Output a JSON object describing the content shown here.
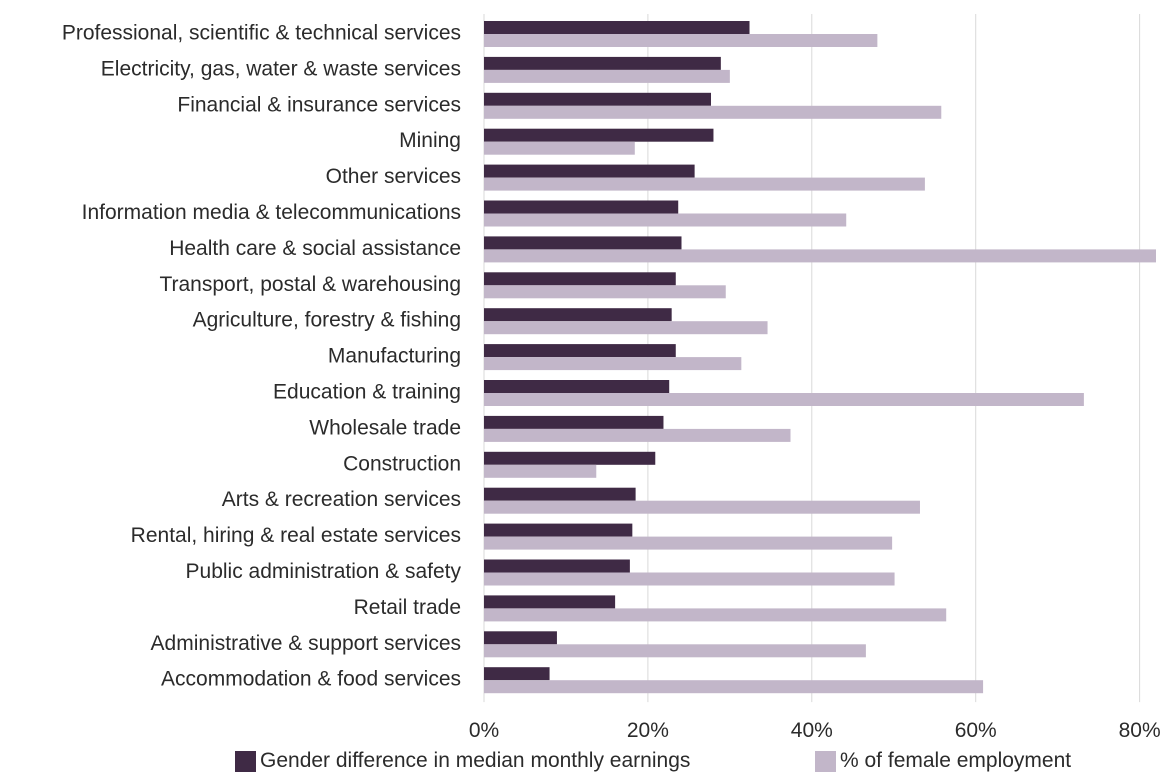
{
  "chart_data": {
    "type": "bar",
    "orientation": "horizontal",
    "categories": [
      "Professional, scientific & technical services",
      "Electricity, gas, water & waste services",
      "Financial & insurance services",
      "Mining",
      "Other services",
      "Information media & telecommunications",
      "Health care & social assistance",
      "Transport, postal & warehousing",
      "Agriculture, forestry & fishing",
      "Manufacturing",
      "Education & training",
      "Wholesale trade",
      "Construction",
      "Arts & recreation services",
      "Rental, hiring & real estate services",
      "Public administration & safety",
      "Retail trade",
      "Administrative & support services",
      "Accommodation & food services"
    ],
    "series": [
      {
        "name": "Gender difference in median monthly earnings",
        "color": "#3f2a45",
        "values": [
          32.4,
          28.9,
          27.7,
          28.0,
          25.7,
          23.7,
          24.1,
          23.4,
          22.9,
          23.4,
          22.6,
          21.9,
          20.9,
          18.5,
          18.1,
          17.8,
          16.0,
          8.9,
          8.0
        ]
      },
      {
        "name": "% of female employment",
        "color": "#c2b6c9",
        "values": [
          48.0,
          30.0,
          55.8,
          18.4,
          53.8,
          44.2,
          82.0,
          29.5,
          34.6,
          31.4,
          73.2,
          37.4,
          13.7,
          53.2,
          49.8,
          50.1,
          56.4,
          46.6,
          60.9
        ]
      }
    ],
    "xlim": [
      0,
      82
    ],
    "xticks": [
      "0%",
      "20%",
      "40%",
      "60%",
      "80%"
    ],
    "xtick_values": [
      0,
      20,
      40,
      60,
      80
    ],
    "grid": "vertical",
    "legend_position": "bottom",
    "title": "",
    "xlabel": "",
    "ylabel": ""
  }
}
